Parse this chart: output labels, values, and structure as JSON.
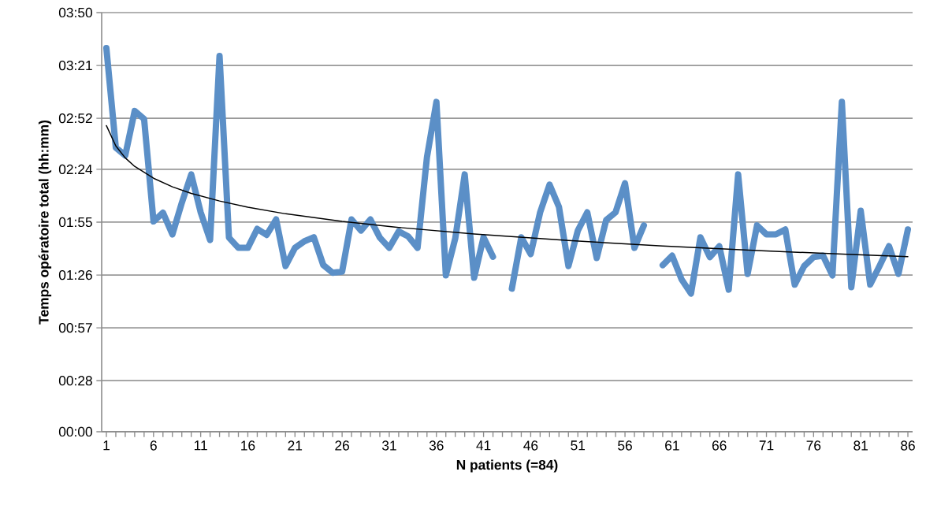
{
  "chart_data": {
    "type": "line",
    "xlabel": "N patients (=84)",
    "ylabel": "Temps opératoire total (hh:mm)",
    "x": [
      1,
      2,
      3,
      4,
      5,
      6,
      7,
      8,
      9,
      10,
      11,
      12,
      13,
      14,
      15,
      16,
      17,
      18,
      19,
      20,
      21,
      22,
      23,
      24,
      25,
      26,
      27,
      28,
      29,
      30,
      31,
      32,
      33,
      34,
      35,
      36,
      37,
      38,
      39,
      40,
      41,
      42,
      43,
      44,
      45,
      46,
      47,
      48,
      49,
      50,
      51,
      52,
      53,
      54,
      55,
      56,
      57,
      58,
      59,
      60,
      61,
      62,
      63,
      64,
      65,
      66,
      67,
      68,
      69,
      70,
      71,
      72,
      73,
      74,
      75,
      76,
      77,
      78,
      79,
      80,
      81,
      82,
      83,
      84,
      85,
      86
    ],
    "xlim": [
      0.5,
      86.5
    ],
    "xticks": [
      1,
      {
        "value": 2,
        "label": null
      },
      {
        "value": 3,
        "label": null
      },
      {
        "value": 4,
        "label": null
      },
      {
        "value": 5,
        "label": null
      },
      6,
      {
        "value": 7,
        "label": null
      },
      {
        "value": 8,
        "label": null
      },
      {
        "value": 9,
        "label": null
      },
      {
        "value": 10,
        "label": null
      },
      11,
      {
        "value": 12,
        "label": null
      },
      {
        "value": 13,
        "label": null
      },
      {
        "value": 14,
        "label": null
      },
      {
        "value": 15,
        "label": null
      },
      16,
      {
        "value": 17,
        "label": null
      },
      {
        "value": 18,
        "label": null
      },
      {
        "value": 19,
        "label": null
      },
      {
        "value": 20,
        "label": null
      },
      21,
      {
        "value": 22,
        "label": null
      },
      {
        "value": 23,
        "label": null
      },
      {
        "value": 24,
        "label": null
      },
      {
        "value": 25,
        "label": null
      },
      26,
      {
        "value": 27,
        "label": null
      },
      {
        "value": 28,
        "label": null
      },
      {
        "value": 29,
        "label": null
      },
      {
        "value": 30,
        "label": null
      },
      31,
      {
        "value": 32,
        "label": null
      },
      {
        "value": 33,
        "label": null
      },
      {
        "value": 34,
        "label": null
      },
      {
        "value": 35,
        "label": null
      },
      36,
      {
        "value": 37,
        "label": null
      },
      {
        "value": 38,
        "label": null
      },
      {
        "value": 39,
        "label": null
      },
      {
        "value": 40,
        "label": null
      },
      41,
      {
        "value": 42,
        "label": null
      },
      {
        "value": 43,
        "label": null
      },
      {
        "value": 44,
        "label": null
      },
      {
        "value": 45,
        "label": null
      },
      46,
      {
        "value": 47,
        "label": null
      },
      {
        "value": 48,
        "label": null
      },
      {
        "value": 49,
        "label": null
      },
      {
        "value": 50,
        "label": null
      },
      51,
      {
        "value": 52,
        "label": null
      },
      {
        "value": 53,
        "label": null
      },
      {
        "value": 54,
        "label": null
      },
      {
        "value": 55,
        "label": null
      },
      56,
      {
        "value": 57,
        "label": null
      },
      {
        "value": 58,
        "label": null
      },
      {
        "value": 59,
        "label": null
      },
      {
        "value": 60,
        "label": null
      },
      61,
      {
        "value": 62,
        "label": null
      },
      {
        "value": 63,
        "label": null
      },
      {
        "value": 64,
        "label": null
      },
      {
        "value": 65,
        "label": null
      },
      66,
      {
        "value": 67,
        "label": null
      },
      {
        "value": 68,
        "label": null
      },
      {
        "value": 69,
        "label": null
      },
      {
        "value": 70,
        "label": null
      },
      71,
      {
        "value": 72,
        "label": null
      },
      {
        "value": 73,
        "label": null
      },
      {
        "value": 74,
        "label": null
      },
      {
        "value": 75,
        "label": null
      },
      76,
      {
        "value": 77,
        "label": null
      },
      {
        "value": 78,
        "label": null
      },
      {
        "value": 79,
        "label": null
      },
      {
        "value": 80,
        "label": null
      },
      81,
      {
        "value": 82,
        "label": null
      },
      {
        "value": 83,
        "label": null
      },
      {
        "value": 84,
        "label": null
      },
      {
        "value": 85,
        "label": null
      },
      86
    ],
    "ylim": [
      0,
      230
    ],
    "yticks": [
      {
        "value": 0,
        "label": "00:00"
      },
      {
        "value": 28,
        "label": "00:28"
      },
      {
        "value": 57,
        "label": "00:57"
      },
      {
        "value": 86,
        "label": "01:26"
      },
      {
        "value": 115,
        "label": "01:55"
      },
      {
        "value": 144,
        "label": "02:24"
      },
      {
        "value": 172,
        "label": "02:52"
      },
      {
        "value": 201,
        "label": "03:21"
      },
      {
        "value": 230,
        "label": "03:50"
      }
    ],
    "grid": "y",
    "series": [
      {
        "color": "#5b8fc7",
        "values": [
          210.5,
          155.9,
          151.6,
          176,
          171.6,
          115.4,
          120.2,
          108.3,
          125.6,
          141.2,
          120.4,
          105.2,
          206.2,
          106.5,
          100.9,
          100.9,
          111.3,
          108,
          116.5,
          90.9,
          100.9,
          104.5,
          106.7,
          91.5,
          87.2,
          87.9,
          116.5,
          110.4,
          116.5,
          106.5,
          100.9,
          109.9,
          107.2,
          100.9,
          150.7,
          181,
          85.8,
          106.1,
          141.2,
          84.5,
          106.7,
          96,
          null,
          78.5,
          106.7,
          97.5,
          120.4,
          135.6,
          123.3,
          90.9,
          110.4,
          120.4,
          95.3,
          116.1,
          120.4,
          136.4,
          100.9,
          113.2,
          null,
          91.4,
          96.6,
          83.6,
          75.8,
          106.7,
          95.8,
          101.8,
          78,
          141.2,
          86.6,
          113.2,
          108.3,
          108.3,
          111,
          80.7,
          90.9,
          95.8,
          96.6,
          85.8,
          181,
          79.3,
          121.3,
          80.7,
          91,
          101.8,
          86.6,
          111
        ]
      },
      {
        "type": "line",
        "color": "#000000",
        "x": [
          1,
          2,
          3,
          4,
          6,
          8,
          10,
          13,
          16,
          20,
          26,
          32,
          40,
          50,
          60,
          70,
          80,
          86
        ],
        "values": [
          168,
          156.8,
          150.3,
          145.6,
          139.1,
          134.4,
          130.8,
          126.6,
          123.2,
          119.6,
          115.4,
          112.1,
          108.5,
          104.9,
          101.9,
          99.4,
          97.3,
          96.1
        ]
      }
    ]
  }
}
